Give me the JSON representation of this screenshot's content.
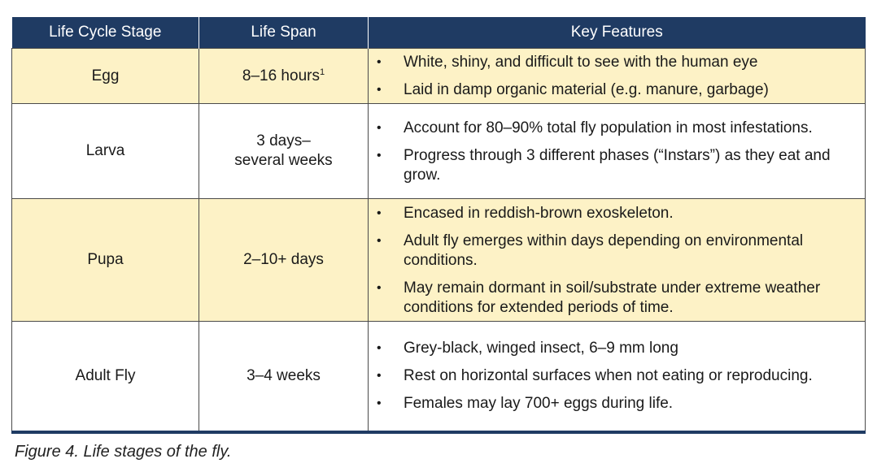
{
  "table": {
    "headers": [
      "Life Cycle Stage",
      "Life Span",
      "Key Features"
    ],
    "rows": [
      {
        "stage": "Egg",
        "span": "8–16 hours",
        "span_sup": "1",
        "features": [
          "White, shiny, and difficult to see with the human eye",
          "Laid in damp organic material (e.g. manure, garbage)"
        ]
      },
      {
        "stage": "Larva",
        "span": "3 days–",
        "span_line2": "several weeks",
        "features": [
          "Account for 80–90% total fly population in most infestations.",
          "Progress through 3 different phases (“Instars”) as they eat and grow."
        ]
      },
      {
        "stage": "Pupa",
        "span": "2–10+ days",
        "features": [
          "Encased in reddish-brown exoskeleton.",
          "Adult fly emerges within days depending on environmental conditions.",
          "May remain dormant in soil/substrate under extreme weather conditions for extended periods of time."
        ]
      },
      {
        "stage": "Adult Fly",
        "span": "3–4 weeks",
        "features": [
          "Grey-black, winged insect, 6–9 mm long",
          "Rest on horizontal surfaces when not eating or reproducing.",
          "Females may lay 700+ eggs during life."
        ]
      }
    ]
  },
  "bullet_glyph": "•",
  "caption": "Figure 4. Life stages of the fly."
}
